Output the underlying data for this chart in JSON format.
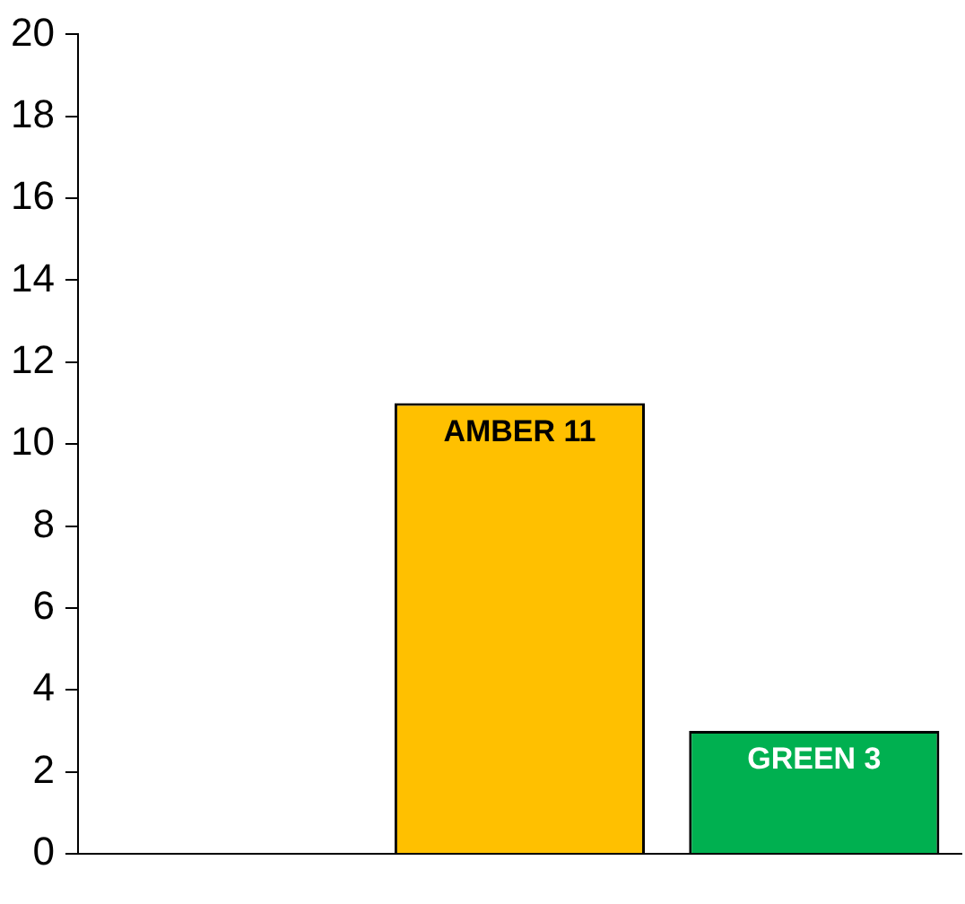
{
  "chart_data": {
    "type": "bar",
    "categories": [
      null,
      null,
      null
    ],
    "values": [
      null,
      11,
      3
    ],
    "value_labels": [
      null,
      "AMBER 11",
      "GREEN 3"
    ],
    "colors": [
      "#ff0000",
      "#ffc000",
      "#00b050"
    ],
    "ylim": [
      0,
      20
    ],
    "yticks": [
      0,
      2,
      4,
      6,
      8,
      10,
      12,
      14,
      16,
      18,
      20
    ],
    "grid": false,
    "legend": false,
    "tick_labels": "y"
  }
}
